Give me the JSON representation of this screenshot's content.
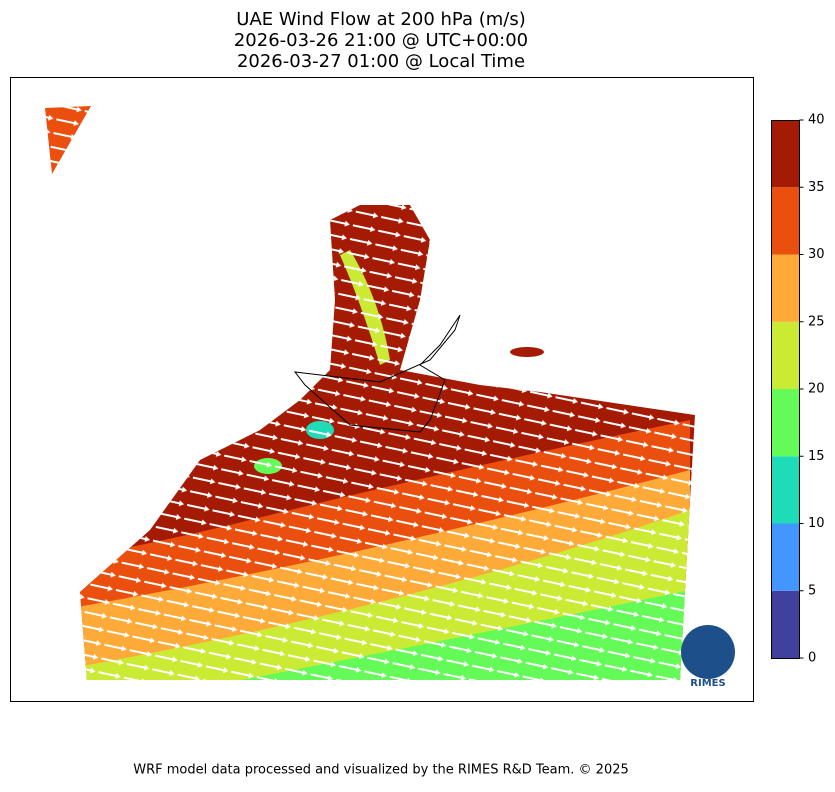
{
  "title_lines": [
    "UAE Wind Flow at 200 hPa (m/s)",
    "2026-03-26 21:00 @ UTC+00:00",
    "2026-03-27 01:00 @ Local Time"
  ],
  "colorbar": {
    "levels": [
      0,
      5,
      10,
      15,
      20,
      25,
      30,
      35,
      40
    ],
    "colors": [
      "#40409f",
      "#4496ff",
      "#1edcb8",
      "#64fb59",
      "#cbea34",
      "#fdaa38",
      "#ea4f0d",
      "#a51a03"
    ]
  },
  "logo_text": "RIMES",
  "footer": "WRF model data processed and visualized by the RIMES R&D Team. © 2025"
}
